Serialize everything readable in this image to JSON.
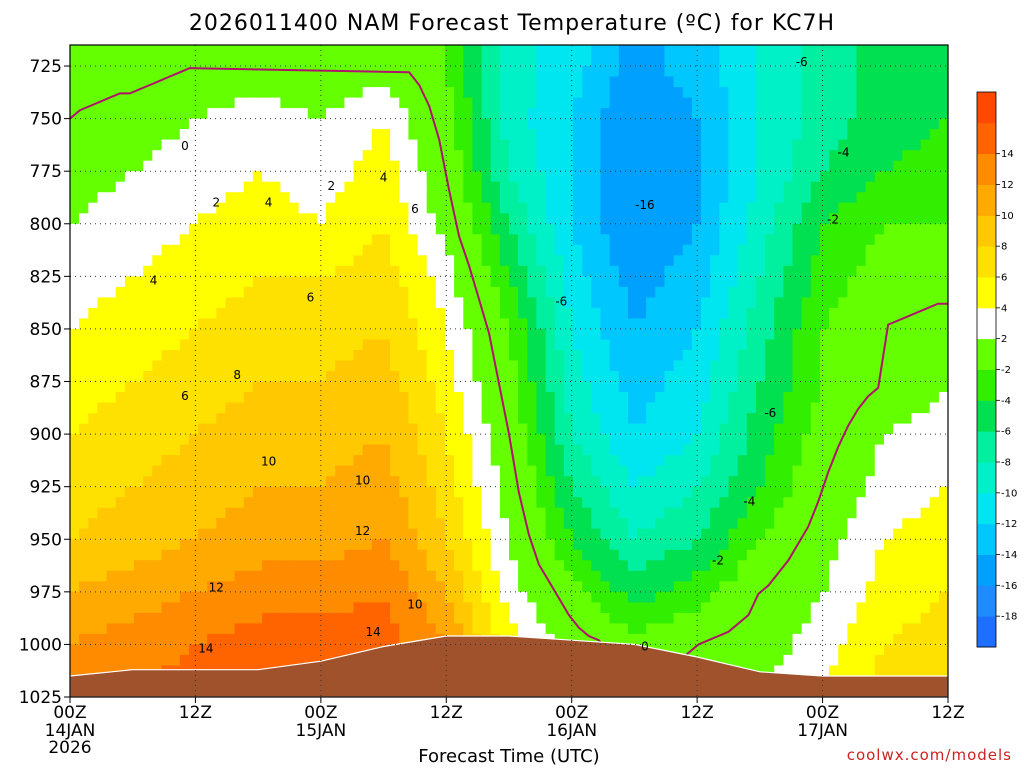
{
  "chart_data": {
    "type": "heatmap",
    "title": "2026011400 NAM Forecast Temperature (ºC) for KC7H",
    "xlabel": "Forecast Time (UTC)",
    "credit": "coolwx.com/models",
    "x_hours": [
      0,
      6,
      12,
      18,
      24,
      30,
      36,
      42,
      48,
      54,
      60,
      66,
      72,
      78,
      84
    ],
    "x_ticks": [
      {
        "hour": 0,
        "label": "00Z",
        "sub": [
          "14JAN",
          "2026"
        ]
      },
      {
        "hour": 12,
        "label": "12Z",
        "sub": []
      },
      {
        "hour": 24,
        "label": "00Z",
        "sub": [
          "15JAN"
        ]
      },
      {
        "hour": 36,
        "label": "12Z",
        "sub": []
      },
      {
        "hour": 48,
        "label": "00Z",
        "sub": [
          "16JAN"
        ]
      },
      {
        "hour": 60,
        "label": "12Z",
        "sub": []
      },
      {
        "hour": 72,
        "label": "00Z",
        "sub": [
          "17JAN"
        ]
      },
      {
        "hour": 84,
        "label": "12Z",
        "sub": []
      }
    ],
    "pressure_ticks": [
      725,
      750,
      775,
      800,
      825,
      850,
      875,
      900,
      925,
      950,
      975,
      1000,
      1025
    ],
    "ylim": [
      1025,
      715
    ],
    "levels": [
      {
        "p": 725,
        "t": [
          -1,
          -1,
          0,
          1,
          0,
          1,
          -2,
          -9,
          -11,
          -15,
          -13,
          -10,
          -7,
          -5,
          -4
        ]
      },
      {
        "p": 750,
        "t": [
          0,
          1,
          2,
          3,
          2,
          4,
          -1,
          -9,
          -12,
          -16,
          -14,
          -10,
          -7,
          -5,
          -4
        ]
      },
      {
        "p": 775,
        "t": [
          1,
          2,
          3,
          4,
          3,
          5,
          0,
          -8,
          -12,
          -16,
          -14,
          -10,
          -6,
          -4,
          -3
        ]
      },
      {
        "p": 800,
        "t": [
          2,
          3,
          4,
          5,
          4,
          6,
          1,
          -6,
          -12,
          -16,
          -14,
          -9,
          -4,
          -2,
          -2
        ]
      },
      {
        "p": 825,
        "t": [
          3,
          4,
          5,
          6,
          6,
          7,
          3,
          -4,
          -11,
          -15,
          -13,
          -8,
          -3,
          -1,
          -1
        ]
      },
      {
        "p": 850,
        "t": [
          4,
          5,
          6,
          7,
          7,
          8,
          4,
          -2,
          -10,
          -14,
          -12,
          -7,
          -2,
          0,
          1
        ]
      },
      {
        "p": 875,
        "t": [
          5,
          6,
          7,
          8,
          8,
          9,
          5,
          -1,
          -9,
          -13,
          -11,
          -6,
          -2,
          0,
          2
        ]
      },
      {
        "p": 900,
        "t": [
          6,
          7,
          8,
          9,
          9,
          10,
          6,
          0,
          -8,
          -12,
          -10,
          -5,
          -1,
          2,
          3
        ]
      },
      {
        "p": 925,
        "t": [
          7,
          8,
          9,
          10,
          10,
          11,
          7,
          1,
          -6,
          -10,
          -8,
          -4,
          0,
          3,
          4
        ]
      },
      {
        "p": 950,
        "t": [
          8,
          9,
          10,
          11,
          11,
          12,
          8,
          2,
          -4,
          -8,
          -6,
          -2,
          1,
          4,
          5
        ]
      },
      {
        "p": 975,
        "t": [
          10,
          11,
          12,
          13,
          13,
          14,
          10,
          3,
          -1,
          -5,
          -3,
          0,
          2,
          5,
          6
        ]
      },
      {
        "p": 1000,
        "t": [
          12,
          13,
          14,
          15,
          15,
          15,
          12,
          5,
          1,
          -1,
          0,
          1,
          3,
          6,
          7
        ]
      },
      {
        "p": 1025,
        "t": [
          13,
          14,
          15,
          16,
          16,
          16,
          13,
          6,
          2,
          0,
          1,
          2,
          4,
          7,
          8
        ]
      }
    ],
    "surface_pressure": [
      1015,
      1012,
      1012,
      1012,
      1008,
      1001,
      996,
      996,
      998,
      1000,
      1006,
      1013,
      1015,
      1015,
      1015
    ],
    "contour_labels": [
      {
        "text": "0",
        "hour": 11,
        "p": 763
      },
      {
        "text": "0",
        "hour": 55,
        "p": 1001
      },
      {
        "text": "2",
        "hour": 14,
        "p": 790
      },
      {
        "text": "2",
        "hour": 25,
        "p": 782
      },
      {
        "text": "-2",
        "hour": 62,
        "p": 960
      },
      {
        "text": "-2",
        "hour": 73,
        "p": 798
      },
      {
        "text": "4",
        "hour": 8,
        "p": 827
      },
      {
        "text": "4",
        "hour": 19,
        "p": 790
      },
      {
        "text": "4",
        "hour": 30,
        "p": 778
      },
      {
        "text": "-4",
        "hour": 65,
        "p": 932
      },
      {
        "text": "-4",
        "hour": 74,
        "p": 766
      },
      {
        "text": "6",
        "hour": 11,
        "p": 882
      },
      {
        "text": "6",
        "hour": 23,
        "p": 835
      },
      {
        "text": "6",
        "hour": 33,
        "p": 793
      },
      {
        "text": "-6",
        "hour": 47,
        "p": 837
      },
      {
        "text": "-6",
        "hour": 67,
        "p": 890
      },
      {
        "text": "-6",
        "hour": 70,
        "p": 723
      },
      {
        "text": "8",
        "hour": 16,
        "p": 872
      },
      {
        "text": "10",
        "hour": 19,
        "p": 913
      },
      {
        "text": "10",
        "hour": 28,
        "p": 922
      },
      {
        "text": "10",
        "hour": 33,
        "p": 981
      },
      {
        "text": "12",
        "hour": 14,
        "p": 973
      },
      {
        "text": "12",
        "hour": 28,
        "p": 946
      },
      {
        "text": "14",
        "hour": 13,
        "p": 1002
      },
      {
        "text": "14",
        "hour": 29,
        "p": 994
      },
      {
        "text": "-16",
        "hour": 55,
        "p": 791
      }
    ],
    "colorbar": {
      "bounds": [
        -20,
        -18,
        -16,
        -14,
        -12,
        -10,
        -8,
        -6,
        -4,
        -2,
        2,
        4,
        6,
        8,
        10,
        12,
        14,
        16
      ],
      "colors": [
        "#1e6eff",
        "#1e8cff",
        "#00a0ff",
        "#00c8ff",
        "#00e6f0",
        "#00f0c8",
        "#00f0a0",
        "#00e050",
        "#32ee00",
        "#64ff00",
        "#ffffff",
        "#ffff00",
        "#ffe100",
        "#ffc800",
        "#ffaa00",
        "#ff8c00",
        "#ff6400",
        "#ff4800"
      ],
      "tick_labels": [
        "-18",
        "-16",
        "-14",
        "-12",
        "-10",
        "-8",
        "-6",
        "-4",
        "-2",
        "2",
        "4",
        "6",
        "8",
        "10",
        "12",
        "14"
      ]
    },
    "terrain_color": "#a0522d",
    "zero_line_color": "#b0126e"
  }
}
